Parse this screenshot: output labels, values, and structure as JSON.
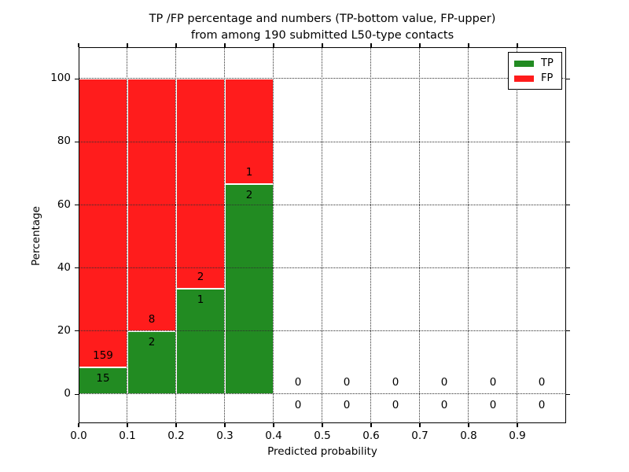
{
  "chart_data": {
    "type": "bar",
    "stacked": true,
    "title_line1": "TP /FP percentage and numbers (TP-bottom value, FP-upper)",
    "title_line2": "from among 190 submitted L50-type contacts",
    "xlabel": "Predicted probability",
    "ylabel": "Percentage",
    "total_contacts": 190,
    "x_tick_labels": [
      "0.0",
      "0.1",
      "0.2",
      "0.3",
      "0.4",
      "0.5",
      "0.6",
      "0.7",
      "0.8",
      "0.9"
    ],
    "y_tick_values": [
      0,
      20,
      40,
      60,
      80,
      100
    ],
    "xlim": [
      0.0,
      1.0
    ],
    "ylim": [
      -9.2,
      110.0
    ],
    "grid": true,
    "grid_style": "dotted",
    "bin_edges": [
      0.0,
      0.1,
      0.2,
      0.3,
      0.4,
      0.5,
      0.6,
      0.7,
      0.8,
      0.9,
      1.0
    ],
    "series": [
      {
        "name": "TP",
        "color": "#228B22",
        "values": [
          15,
          2,
          1,
          2,
          0,
          0,
          0,
          0,
          0,
          0
        ]
      },
      {
        "name": "FP",
        "color": "#FF1C1C",
        "values": [
          159,
          8,
          2,
          1,
          0,
          0,
          0,
          0,
          0,
          0
        ]
      }
    ],
    "bar_edge_color": "#FFFFFF",
    "legend": {
      "position": "upper right",
      "entries": [
        {
          "label": "TP",
          "color": "#228B22"
        },
        {
          "label": "FP",
          "color": "#FF1C1C"
        }
      ]
    }
  }
}
